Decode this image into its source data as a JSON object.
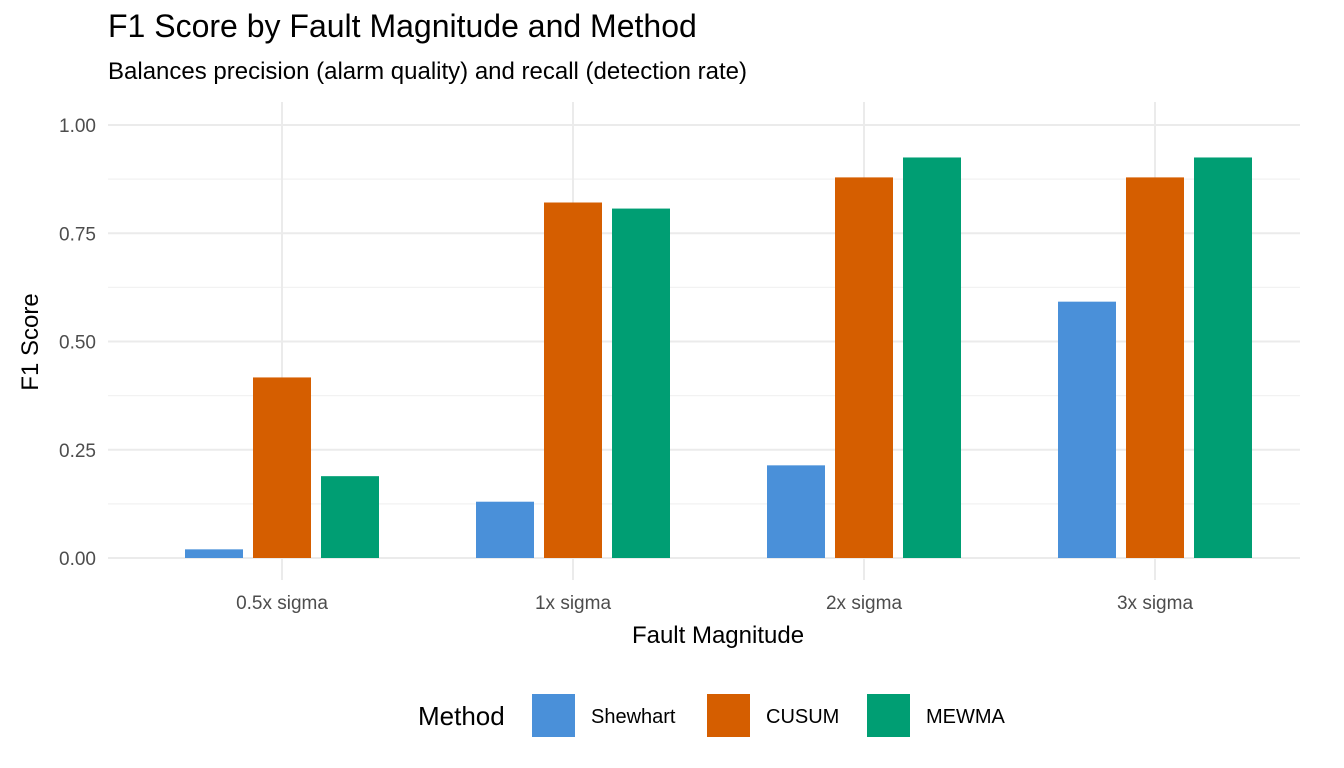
{
  "chart_data": {
    "type": "bar",
    "title": "F1 Score by Fault Magnitude and Method",
    "subtitle": "Balances precision (alarm quality) and recall (detection rate)",
    "xlabel": "Fault Magnitude",
    "ylabel": "F1 Score",
    "categories": [
      "0.5x sigma",
      "1x sigma",
      "2x sigma",
      "3x sigma"
    ],
    "ylim": [
      0,
      1
    ],
    "yticks": [
      0,
      0.25,
      0.5,
      0.75,
      1
    ],
    "ytick_labels": [
      "0.00",
      "0.25",
      "0.50",
      "0.75",
      "1.00"
    ],
    "grid": true,
    "legend": {
      "title": "Method",
      "position": "bottom"
    },
    "series": [
      {
        "name": "Shewhart",
        "color": "#4A90D9",
        "values": [
          0.02,
          0.13,
          0.214,
          0.592
        ]
      },
      {
        "name": "CUSUM",
        "color": "#D55E00",
        "values": [
          0.417,
          0.821,
          0.879,
          0.879
        ]
      },
      {
        "name": "MEWMA",
        "color": "#009E73",
        "values": [
          0.189,
          0.807,
          0.925,
          0.925
        ]
      }
    ]
  }
}
